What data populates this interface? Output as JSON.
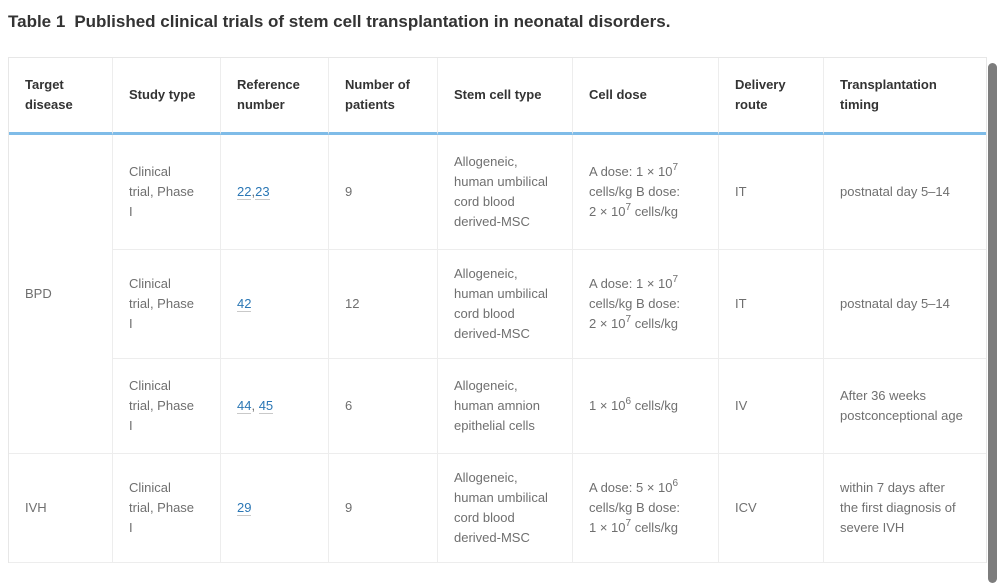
{
  "title": {
    "label": "Table 1",
    "text": "Published clinical trials of stem cell transplantation in neonatal disorders."
  },
  "colors": {
    "accent": "#7fbce8",
    "link": "#2b77b5",
    "text_body": "#6f6f6f",
    "text_header": "#333333",
    "border": "#ededed",
    "border_outer": "#e7e7e7",
    "scrollbar": "#7d7d7d"
  },
  "table": {
    "columns": [
      "Target disease",
      "Study type",
      "Reference number",
      "Number of patients",
      "Stem cell type",
      "Cell dose",
      "Delivery route",
      "Transplantation timing"
    ],
    "groups": [
      {
        "target_disease": "BPD",
        "rows": [
          {
            "study_type": "Clinical trial, Phase I",
            "references": [
              "22",
              "23"
            ],
            "reference_separator": ",",
            "number_of_patients": "9",
            "stem_cell_type": "Allogeneic, human umbilical cord blood derived-MSC",
            "cell_dose": [
              {
                "t": "A dose: 1 × 10"
              },
              {
                "sup": "7"
              },
              {
                "t": " cells/kg B dose: 2 × 10"
              },
              {
                "sup": "7"
              },
              {
                "t": " cells/kg"
              }
            ],
            "delivery_route": "IT",
            "transplantation_timing": "postnatal day 5–14"
          },
          {
            "study_type": "Clinical trial, Phase I",
            "references": [
              "42"
            ],
            "reference_separator": ",",
            "number_of_patients": "12",
            "stem_cell_type": "Allogeneic, human umbilical cord blood derived-MSC",
            "cell_dose": [
              {
                "t": "A dose: 1 × 10"
              },
              {
                "sup": "7"
              },
              {
                "t": " cells/kg B dose: 2 × 10"
              },
              {
                "sup": "7"
              },
              {
                "t": " cells/kg"
              }
            ],
            "delivery_route": "IT",
            "transplantation_timing": "postnatal day 5–14"
          },
          {
            "study_type": "Clinical trial, Phase I",
            "references": [
              "44",
              "45"
            ],
            "reference_separator": ", ",
            "number_of_patients": "6",
            "stem_cell_type": "Allogeneic, human amnion epithelial cells",
            "cell_dose": [
              {
                "t": "1 × 10"
              },
              {
                "sup": "6"
              },
              {
                "t": " cells/kg"
              }
            ],
            "delivery_route": "IV",
            "transplantation_timing": "After 36 weeks postconceptional age"
          }
        ]
      },
      {
        "target_disease": "IVH",
        "rows": [
          {
            "study_type": "Clinical trial, Phase I",
            "references": [
              "29"
            ],
            "reference_separator": ",",
            "number_of_patients": "9",
            "stem_cell_type": "Allogeneic, human umbilical cord blood derived-MSC",
            "cell_dose": [
              {
                "t": "A dose: 5 × 10"
              },
              {
                "sup": "6"
              },
              {
                "t": " cells/kg B dose: 1 × 10"
              },
              {
                "sup": "7"
              },
              {
                "t": " cells/kg"
              }
            ],
            "delivery_route": "ICV",
            "transplantation_timing": "within 7 days after the first diagnosis of severe IVH"
          }
        ]
      }
    ]
  }
}
